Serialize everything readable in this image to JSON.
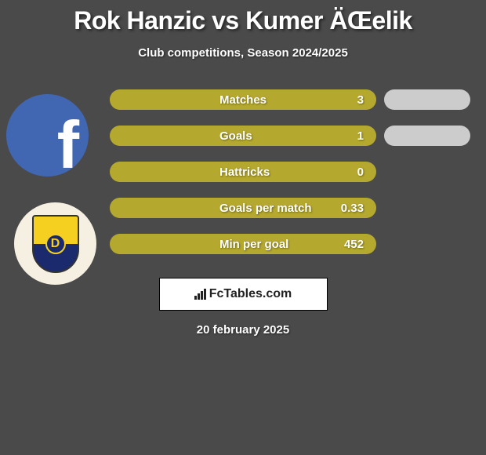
{
  "title": "Rok Hanzic vs Kumer ÄŒelik",
  "subtitle": "Club competitions, Season 2024/2025",
  "date": "20 february 2025",
  "attribution": "FcTables.com",
  "colors": {
    "bar_left": "#b5a82e",
    "bar_right": "#cccccc",
    "background": "#4a4a4a",
    "text": "#ffffff"
  },
  "layout": {
    "left_pill_width": 340,
    "pill_height": 26,
    "row_gap": 20,
    "right_max_width": 110
  },
  "stats": [
    {
      "label": "Matches",
      "left_value": "3",
      "right_width": 110
    },
    {
      "label": "Goals",
      "left_value": "1",
      "right_width": 110
    },
    {
      "label": "Hattricks",
      "left_value": "0",
      "right_width": 0
    },
    {
      "label": "Goals per match",
      "left_value": "0.33",
      "right_width": 0
    },
    {
      "label": "Min per goal",
      "left_value": "452",
      "right_width": 0
    }
  ],
  "avatars": [
    {
      "name": "player1-avatar",
      "type": "facebook"
    },
    {
      "name": "player2-avatar",
      "type": "club-badge",
      "letter": "D"
    }
  ]
}
